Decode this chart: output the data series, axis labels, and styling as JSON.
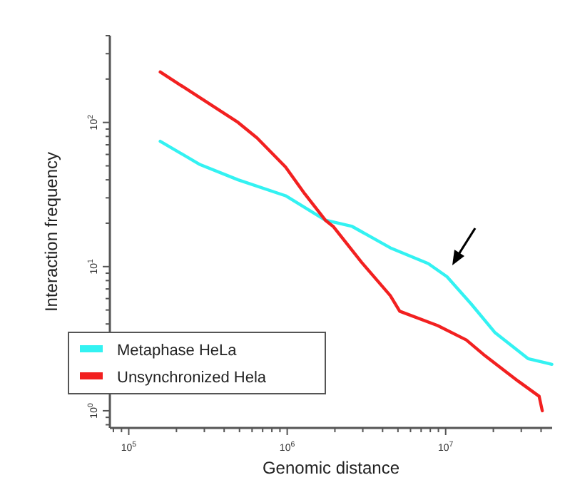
{
  "chart_data": {
    "type": "line",
    "xlabel": "Genomic distance",
    "ylabel": "Interaction frequency",
    "log": "xy",
    "legend": "bottom left",
    "grid": false,
    "line_style": "solid",
    "xlim": [
      76000,
      47000000
    ],
    "ylim": [
      0.76,
      400
    ],
    "xticks": [
      {
        "value": 80000,
        "label": null
      },
      {
        "value": 90000,
        "label": null
      },
      {
        "value": 100000,
        "label": "10$^{5}$"
      },
      {
        "value": 200000,
        "label": null
      },
      {
        "value": 300000,
        "label": null
      },
      {
        "value": 400000,
        "label": null
      },
      {
        "value": 500000,
        "label": null
      },
      {
        "value": 600000,
        "label": null
      },
      {
        "value": 700000,
        "label": null
      },
      {
        "value": 800000,
        "label": null
      },
      {
        "value": 900000,
        "label": null
      },
      {
        "value": 1000000,
        "label": "10$^{6}$"
      },
      {
        "value": 2000000,
        "label": null
      },
      {
        "value": 3000000,
        "label": null
      },
      {
        "value": 4000000,
        "label": null
      },
      {
        "value": 5000000,
        "label": null
      },
      {
        "value": 6000000,
        "label": null
      },
      {
        "value": 7000000,
        "label": null
      },
      {
        "value": 8000000,
        "label": null
      },
      {
        "value": 9000000,
        "label": null
      },
      {
        "value": 10000000,
        "label": "10$^{7}$"
      },
      {
        "value": 20000000,
        "label": null
      },
      {
        "value": 30000000,
        "label": null
      },
      {
        "value": 40000000,
        "label": null
      }
    ],
    "yticks": [
      {
        "value": 0.8,
        "label": null
      },
      {
        "value": 0.9,
        "label": null
      },
      {
        "value": 1,
        "label": "10$^{0}$"
      },
      {
        "value": 2,
        "label": null
      },
      {
        "value": 3,
        "label": null
      },
      {
        "value": 4,
        "label": null
      },
      {
        "value": 5,
        "label": null
      },
      {
        "value": 6,
        "label": null
      },
      {
        "value": 7,
        "label": null
      },
      {
        "value": 8,
        "label": null
      },
      {
        "value": 9,
        "label": null
      },
      {
        "value": 10,
        "label": "10$^{1}$"
      },
      {
        "value": 20,
        "label": null
      },
      {
        "value": 30,
        "label": null
      },
      {
        "value": 40,
        "label": null
      },
      {
        "value": 50,
        "label": null
      },
      {
        "value": 60,
        "label": null
      },
      {
        "value": 70,
        "label": null
      },
      {
        "value": 80,
        "label": null
      },
      {
        "value": 90,
        "label": null
      },
      {
        "value": 100,
        "label": "10$^{2}$"
      },
      {
        "value": 200,
        "label": null
      },
      {
        "value": 300,
        "label": null
      },
      {
        "value": 400,
        "label": null
      }
    ],
    "series": [
      {
        "name": "Metaphase HeLa",
        "color": "#33f2f2",
        "x": [
          158000,
          282000,
          490000,
          977000,
          1740000,
          2570000,
          4470000,
          7760000,
          10200000,
          14500000,
          20400000,
          33100000,
          46800000
        ],
        "values": [
          74,
          51,
          40,
          31,
          21,
          19,
          13.5,
          10.5,
          8.5,
          5.5,
          3.5,
          2.3,
          2.1
        ]
      },
      {
        "name": "Unsynchronized Hela",
        "color": "#f22020",
        "x": [
          158000,
          490000,
          646000,
          977000,
          1290000,
          1740000,
          1950000,
          2950000,
          4470000,
          5130000,
          8910000,
          13500000,
          17800000,
          28800000,
          38900000,
          40700000
        ],
        "values": [
          224,
          100,
          78,
          49,
          32,
          21,
          19,
          10.7,
          6.3,
          4.9,
          3.9,
          3.1,
          2.4,
          1.6,
          1.26,
          1.0
        ]
      }
    ]
  }
}
